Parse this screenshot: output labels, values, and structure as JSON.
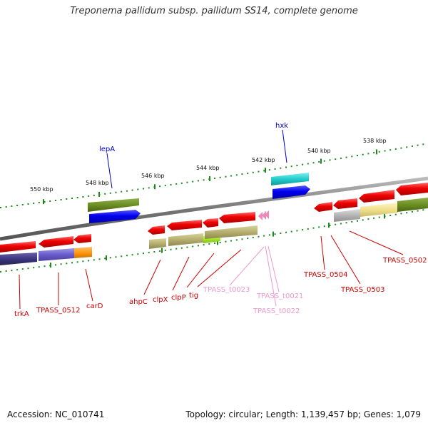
{
  "title": "Treponema pallidum subsp. pallidum SS14, complete genome",
  "footer": {
    "accession": "Accession: NC_010741",
    "summary": "Topology: circular; Length: 1,139,457 bp; Genes: 1,079"
  },
  "ticks": [
    "550 kbp",
    "548 kbp",
    "546 kbp",
    "544 kbp",
    "542 kbp",
    "540 kbp",
    "538 kbp"
  ],
  "genes_top": [
    "lepA",
    "hxk"
  ],
  "genes_bottom": [
    "trkA",
    "TPASS_0512",
    "carD",
    "ahpC",
    "clpX",
    "clpP",
    "tig",
    "TPASS_0504",
    "TPASS_0503",
    "TPASS_0502"
  ],
  "trna": [
    "TPASS_t0023",
    "TPASS_t0021",
    "TPASS_t0022"
  ],
  "colors": {
    "gene_red": "#ff0000",
    "top_label": "#0000cc",
    "bottom_label": "#cc0000",
    "trna_label": "#ee99cc",
    "tick_green": "#1a8a1a",
    "backbone": "#888888"
  }
}
